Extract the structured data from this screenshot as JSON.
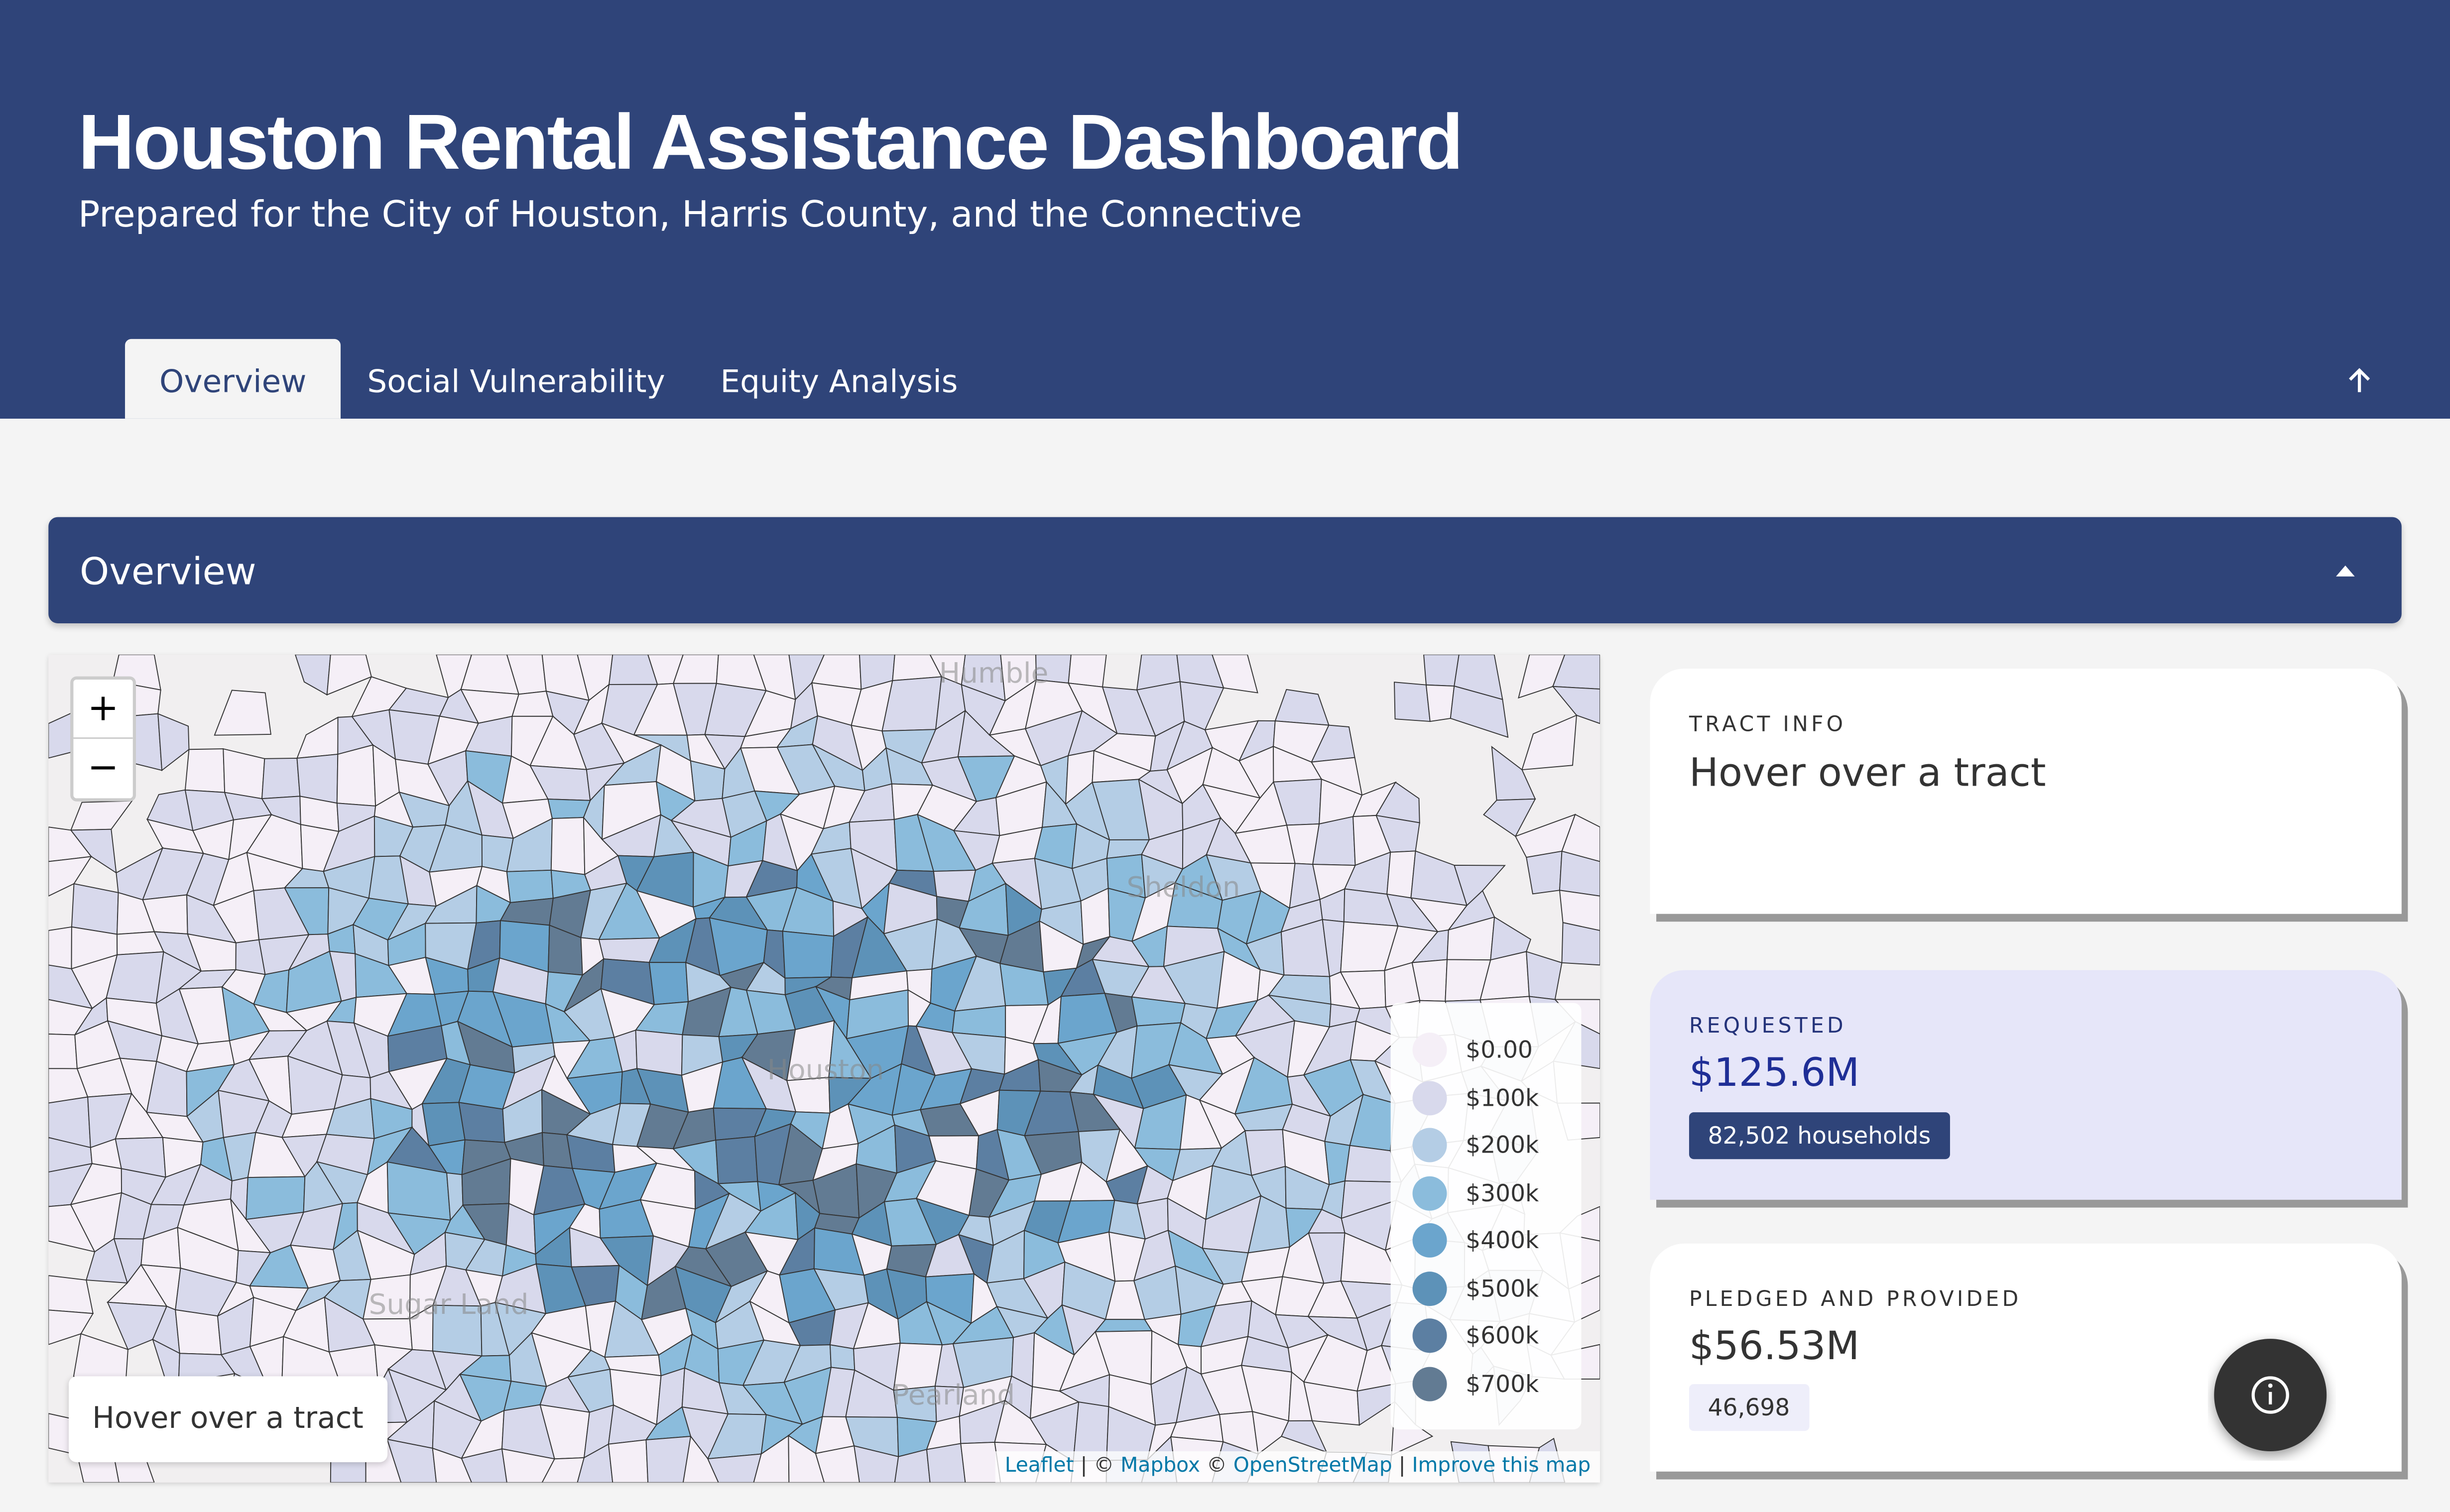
{
  "header": {
    "title": "Houston Rental Assistance Dashboard",
    "subtitle": "Prepared for the City of Houston, Harris County, and the Connective"
  },
  "tabs": [
    "Overview",
    "Social Vulnerability",
    "Equity Analysis"
  ],
  "section": {
    "title": "Overview"
  },
  "map": {
    "zoom_in": "+",
    "zoom_out": "−",
    "hover_text": "Hover over a tract",
    "place_labels": [
      "Humble",
      "Sheldon",
      "Houston",
      "Sugar Land",
      "Pearland"
    ],
    "legend": [
      {
        "label": "$0.00",
        "color": "#f5eff7"
      },
      {
        "label": "$100k",
        "color": "#d8d9ec"
      },
      {
        "label": "$200k",
        "color": "#b4cde5"
      },
      {
        "label": "$300k",
        "color": "#8bbcdc"
      },
      {
        "label": "$400k",
        "color": "#6ba5cd"
      },
      {
        "label": "$500k",
        "color": "#5d92b8"
      },
      {
        "label": "$600k",
        "color": "#5c7fa2"
      },
      {
        "label": "$700k",
        "color": "#627b93"
      }
    ],
    "attribution": [
      "Leaflet",
      "|",
      "©",
      "Mapbox",
      "©",
      "OpenStreetMap",
      "|",
      "Improve this map"
    ]
  },
  "cards": {
    "tract_info": {
      "label": "TRACT INFO",
      "text": "Hover over a tract"
    },
    "requested": {
      "label": "REQUESTED",
      "value": "$125.6M",
      "badge": "82,502 households"
    },
    "pledged": {
      "label": "PLEDGED AND PROVIDED",
      "value": "$56.53M",
      "badge": "46,698"
    }
  }
}
